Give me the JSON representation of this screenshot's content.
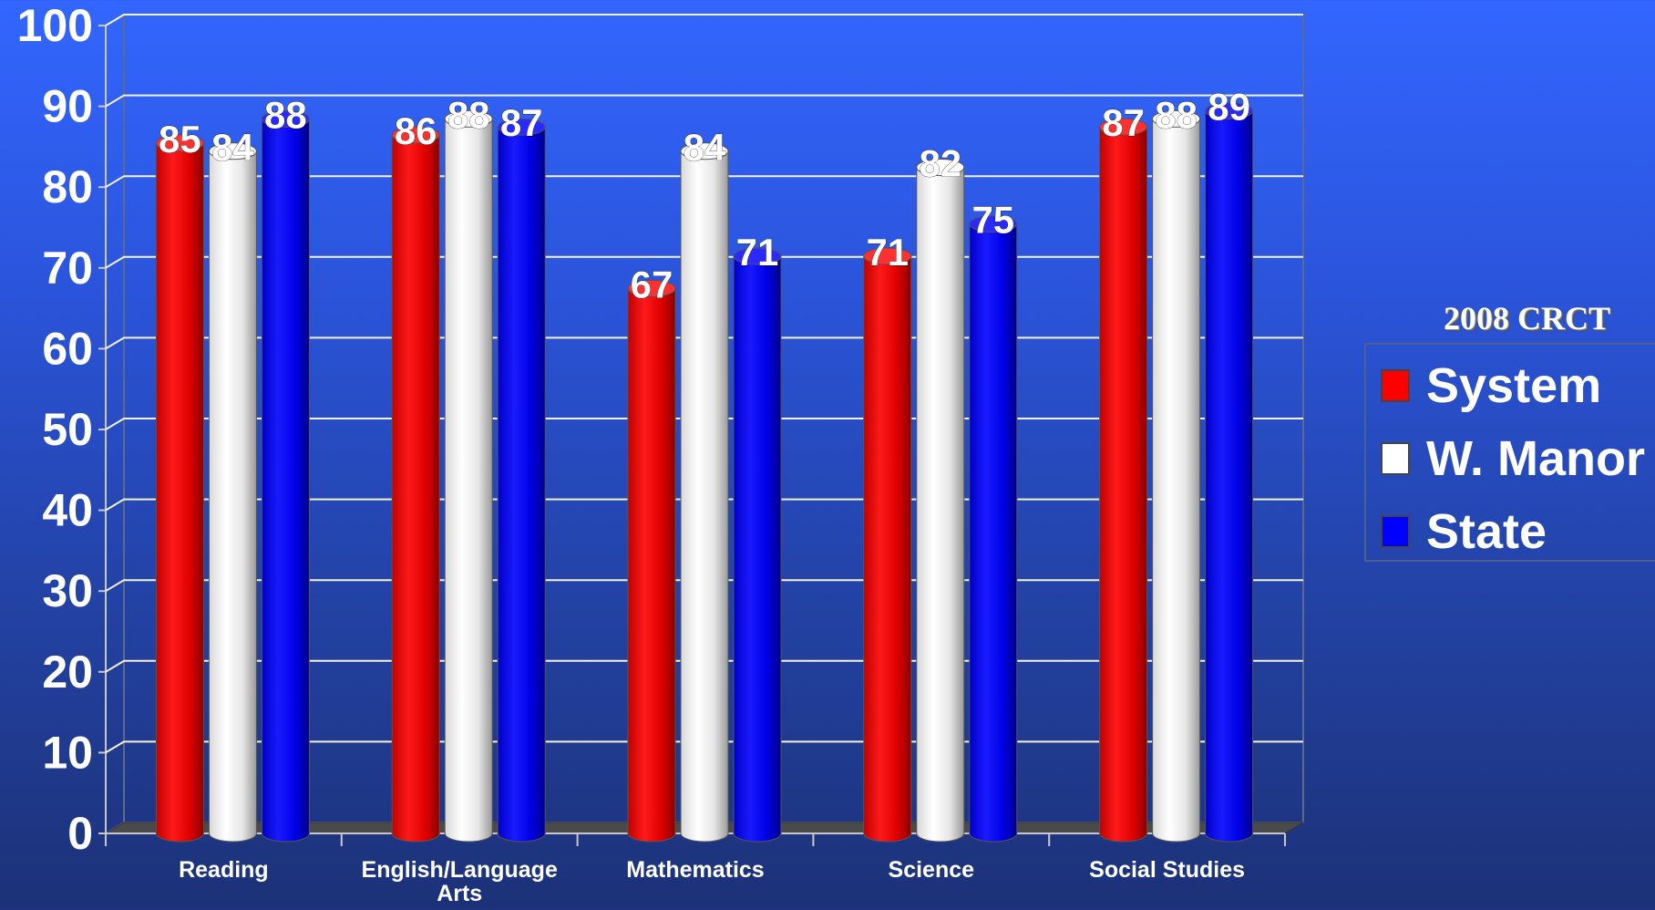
{
  "chart_data": {
    "type": "bar",
    "categories": [
      "Reading",
      "English/Language Arts",
      "Mathematics",
      "Science",
      "Social Studies"
    ],
    "series": [
      {
        "name": "System",
        "color": "#ff0000",
        "values": [
          85,
          86,
          67,
          71,
          87
        ]
      },
      {
        "name": "W. Manor",
        "color": "#ffffff",
        "values": [
          84,
          88,
          84,
          82,
          88
        ]
      },
      {
        "name": "State",
        "color": "#0000ff",
        "values": [
          88,
          87,
          71,
          75,
          89
        ]
      }
    ],
    "ylim": [
      0,
      100
    ],
    "yticks": [
      0,
      10,
      20,
      30,
      40,
      50,
      60,
      70,
      80,
      90,
      100
    ],
    "grid": true,
    "legend_title": "2008 CRCT",
    "legend_position": "right"
  },
  "legend": {
    "title": "2008 CRCT",
    "items": [
      {
        "label": "System",
        "color": "#ff0000"
      },
      {
        "label": "W. Manor",
        "color": "#ffffff"
      },
      {
        "label": "State",
        "color": "#0000ff"
      }
    ]
  }
}
